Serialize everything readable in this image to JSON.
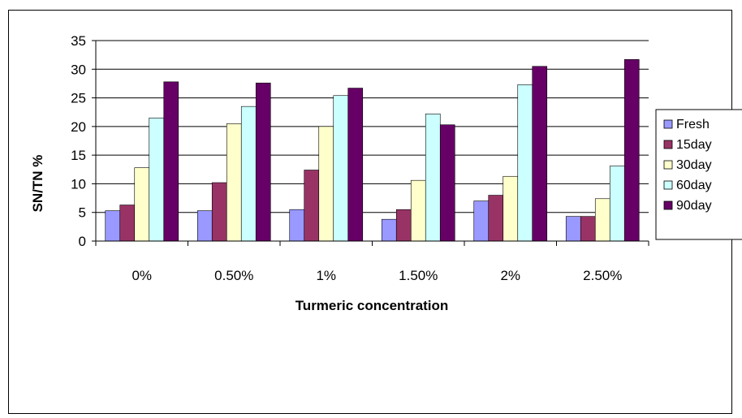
{
  "chart_data": {
    "type": "bar",
    "xlabel": "Turmeric concentration",
    "ylabel": "SN/TN %",
    "ylim": [
      0,
      35
    ],
    "yticks": [
      0,
      5,
      10,
      15,
      20,
      25,
      30,
      35
    ],
    "grid": true,
    "legend_position": "right",
    "categories": [
      "0%",
      "0.50%",
      "1%",
      "1.50%",
      "2%",
      "2.50%"
    ],
    "series": [
      {
        "name": "Fresh",
        "color": "#9999ff",
        "values": [
          5.3,
          5.3,
          5.5,
          3.8,
          7.0,
          4.3
        ]
      },
      {
        "name": "15day",
        "color": "#993366",
        "values": [
          6.3,
          10.2,
          12.4,
          5.5,
          8.0,
          4.3
        ]
      },
      {
        "name": "30day",
        "color": "#ffffcc",
        "values": [
          12.8,
          20.5,
          20.0,
          10.6,
          11.3,
          7.4
        ]
      },
      {
        "name": "60day",
        "color": "#ccffff",
        "values": [
          21.5,
          23.5,
          25.4,
          22.2,
          27.3,
          13.1
        ]
      },
      {
        "name": "90day",
        "color": "#660066",
        "values": [
          27.8,
          27.6,
          26.7,
          20.3,
          30.5,
          31.7
        ]
      }
    ]
  }
}
